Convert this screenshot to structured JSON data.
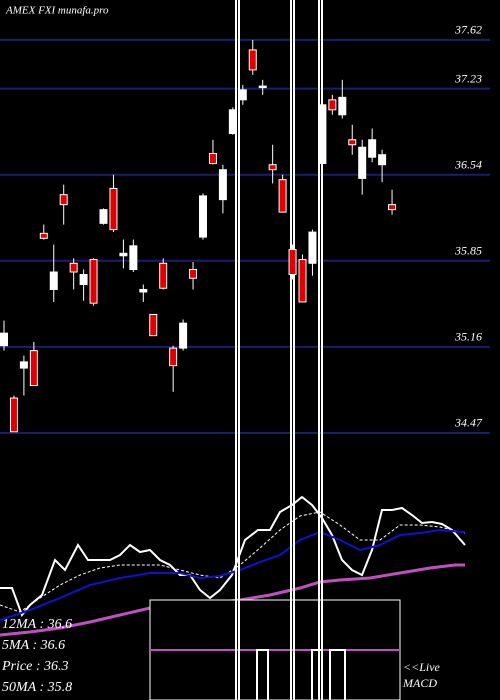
{
  "chart_data": {
    "type": "candlestick",
    "title": "AMEX  FXI munafa.pro",
    "ylim": [
      32.33,
      37.94
    ],
    "yticks": [
      37.62,
      37.23,
      36.54,
      35.85,
      35.16,
      34.47
    ],
    "grid": true,
    "up_color": "#e00000",
    "down_color": "#ffffff",
    "open": [
      35.27,
      34.48,
      35.04,
      34.85,
      36.03,
      35.76,
      36.3,
      35.76,
      35.74,
      35.51,
      36.26,
      36.1,
      35.91,
      35.97,
      35.62,
      35.25,
      35.63,
      35.01,
      35.35,
      35.71,
      36.37,
      36.63,
      36.58,
      37.06,
      37.22,
      37.38,
      37.25,
      36.58,
      36.24,
      35.74,
      35.52,
      36.08,
      37.1,
      37.06,
      37.16,
      36.78,
      36.76,
      36.82,
      36.7,
      36.26
    ],
    "high": [
      35.37,
      34.77,
      35.09,
      35.2,
      36.14,
      35.98,
      36.46,
      35.87,
      35.78,
      35.87,
      36.27,
      36.54,
      36.02,
      36.02,
      35.66,
      35.42,
      35.87,
      35.17,
      35.38,
      35.84,
      36.39,
      36.82,
      36.62,
      37.08,
      37.26,
      37.62,
      37.3,
      36.78,
      36.54,
      35.98,
      35.9,
      36.1,
      37.3,
      37.18,
      37.3,
      36.94,
      36.82,
      36.91,
      36.74,
      36.42
    ],
    "low": [
      35.13,
      34.48,
      34.77,
      34.85,
      36.02,
      35.52,
      36.14,
      35.62,
      35.53,
      35.49,
      36.14,
      36.08,
      35.79,
      35.76,
      35.52,
      35.25,
      35.62,
      34.8,
      35.13,
      35.62,
      36.02,
      36.62,
      36.23,
      36.86,
      37.1,
      37.34,
      37.18,
      36.47,
      36.24,
      35.7,
      35.52,
      35.73,
      36.62,
      37.02,
      36.99,
      36.7,
      36.38,
      36.64,
      36.48,
      36.22
    ],
    "close": [
      35.17,
      34.75,
      34.99,
      35.13,
      36.07,
      35.62,
      36.38,
      35.83,
      35.66,
      35.86,
      36.15,
      36.43,
      35.89,
      35.78,
      35.6,
      35.42,
      35.83,
      35.15,
      35.15,
      35.78,
      36.04,
      36.71,
      36.34,
      36.87,
      37.14,
      37.54,
      37.24,
      36.62,
      36.5,
      35.94,
      35.86,
      35.83,
      36.63,
      37.14,
      37.02,
      36.82,
      36.51,
      36.68,
      36.62,
      36.3
    ],
    "annotations": [
      "12MA : 36.6",
      "5MA : 36.6",
      "Price  : 36.3",
      "50MA : 35.8"
    ],
    "live_label": "<<Live",
    "macd_label": "MACD"
  }
}
